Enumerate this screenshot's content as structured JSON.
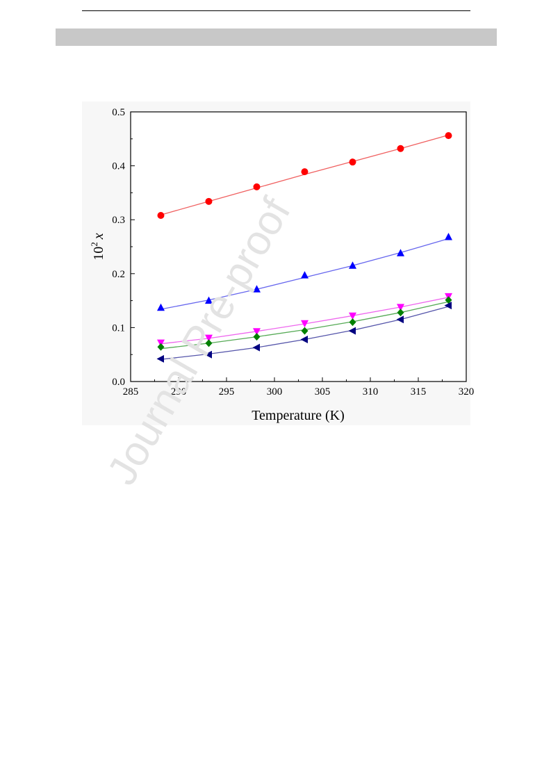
{
  "watermark": {
    "text": "Journal Pre-proof"
  },
  "chart_data": {
    "type": "scatter",
    "title": "",
    "xlabel": "Temperature (K)",
    "ylabel_base": "10",
    "ylabel_sup": "2",
    "ylabel_var": "x",
    "xlim": [
      285,
      320
    ],
    "ylim": [
      0.0,
      0.5
    ],
    "xticks": [
      285,
      290,
      295,
      300,
      305,
      310,
      315,
      320
    ],
    "yticks": [
      0.0,
      0.1,
      0.2,
      0.3,
      0.4,
      0.5
    ],
    "xtick_labels": [
      "285",
      "290",
      "295",
      "300",
      "305",
      "310",
      "315",
      "320"
    ],
    "ytick_labels": [
      "0.0",
      "0.1",
      "0.2",
      "0.3",
      "0.4",
      "0.5"
    ],
    "grid": false,
    "legend": false,
    "x": [
      288.15,
      293.15,
      298.15,
      303.15,
      308.15,
      313.15,
      318.15
    ],
    "series": [
      {
        "marker": "circle",
        "color": "#ff0000",
        "line_color": "#f06060",
        "values": [
          0.308,
          0.334,
          0.361,
          0.389,
          0.407,
          0.432,
          0.456
        ],
        "fit": [
          0.309,
          0.334,
          0.359,
          0.384,
          0.408,
          0.432,
          0.457
        ]
      },
      {
        "marker": "triangle-up",
        "color": "#0000ff",
        "line_color": "#6666ee",
        "values": [
          0.137,
          0.15,
          0.171,
          0.197,
          0.215,
          0.238,
          0.268
        ],
        "fit": [
          0.134,
          0.151,
          0.171,
          0.193,
          0.215,
          0.239,
          0.265
        ]
      },
      {
        "marker": "triangle-down",
        "color": "#ff00ff",
        "line_color": "#ee66ee",
        "values": [
          0.072,
          0.081,
          0.093,
          0.108,
          0.122,
          0.138,
          0.158
        ],
        "fit": [
          0.07,
          0.08,
          0.093,
          0.107,
          0.122,
          0.138,
          0.156
        ]
      },
      {
        "marker": "diamond",
        "color": "#008000",
        "line_color": "#55aa55",
        "values": [
          0.064,
          0.071,
          0.083,
          0.094,
          0.11,
          0.128,
          0.151
        ],
        "fit": [
          0.061,
          0.071,
          0.083,
          0.096,
          0.111,
          0.128,
          0.148
        ]
      },
      {
        "marker": "triangle-left",
        "color": "#000080",
        "line_color": "#5555aa",
        "values": [
          0.042,
          0.05,
          0.063,
          0.078,
          0.094,
          0.115,
          0.141
        ],
        "fit": [
          0.041,
          0.051,
          0.063,
          0.078,
          0.095,
          0.115,
          0.139
        ]
      }
    ]
  }
}
